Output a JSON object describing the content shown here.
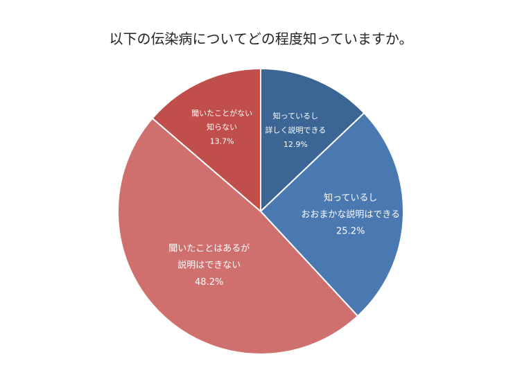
{
  "chart_data": {
    "type": "pie",
    "title": "以下の伝染病についてどの程度知っていますか。",
    "start_angle_deg": 90,
    "direction": "clockwise",
    "slices": [
      {
        "name": "知っているし\n詳しく説明できる",
        "percent_label": "12.9%",
        "value": 12.9,
        "color": "#3a6594"
      },
      {
        "name": "知っているし\nおおまかな説明はできる",
        "percent_label": "25.2%",
        "value": 25.2,
        "color": "#4a78b0"
      },
      {
        "name": "聞いたことはあるが\n説明はできない",
        "percent_label": "48.2%",
        "value": 48.2,
        "color": "#cf706e"
      },
      {
        "name": "聞いたことがない\n知らない",
        "percent_label": "13.7%",
        "value": 13.7,
        "color": "#c04f4c"
      }
    ]
  }
}
